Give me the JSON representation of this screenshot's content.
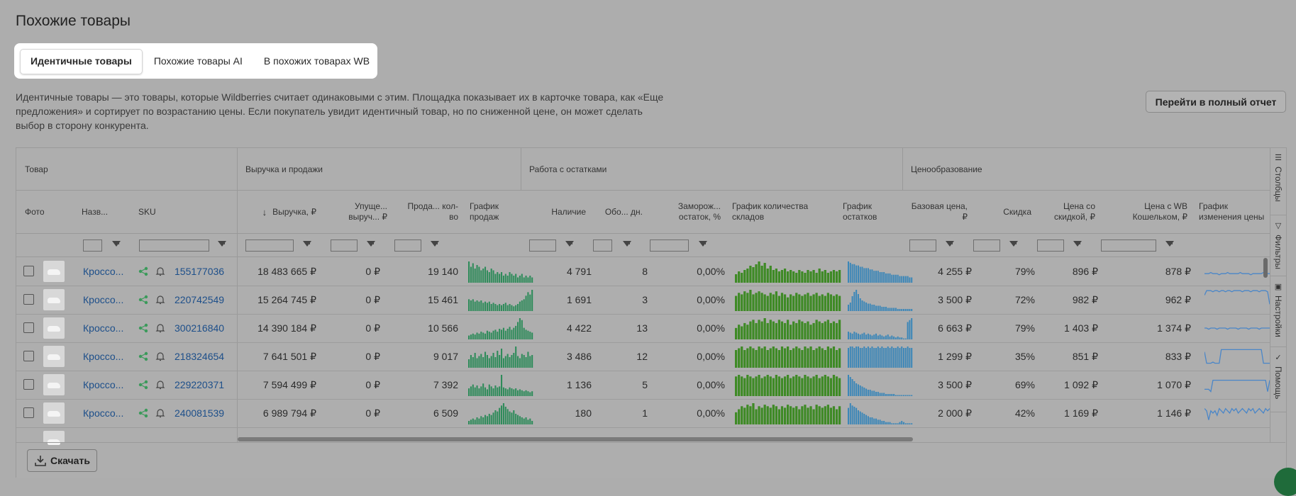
{
  "page": {
    "title": "Похожие товары"
  },
  "tabs": [
    {
      "label": "Идентичные товары",
      "active": true
    },
    {
      "label": "Похожие товары AI",
      "active": false
    },
    {
      "label": "В похожих товарах WB",
      "active": false
    }
  ],
  "description": "Идентичные товары — это товары, которые Wildberries считает одинаковыми с этим. Площадка показывает их в карточке товара, как «Еще предложения» и сортирует по возрастанию цены. Если покупатель увидит идентичный товар, но по сниженной цене, он может сделать выбор в сторону конкурента.",
  "full_report_button": "Перейти в полный отчет",
  "groups": {
    "product": "Товар",
    "revenue": "Выручка и продажи",
    "stock": "Работа с остатками",
    "pricing": "Ценообразование"
  },
  "columns": {
    "photo": "Фото",
    "name": "Назв...",
    "sku": "SKU",
    "revenue": "Выручка, ₽",
    "lost_revenue": "Упуще... выруч... ₽",
    "sales_qty": "Прода... кол-во",
    "sales_chart": "График продаж",
    "stock": "Наличие",
    "turnover": "Обо... дн.",
    "frozen": "Заморож... остаток, %",
    "warehouses_chart": "График количества складов",
    "stock_chart": "График остатков",
    "base_price": "Базовая цена, ₽",
    "discount": "Скидка",
    "discount_price": "Цена со скидкой, ₽",
    "wallet_price": "Цена с WB Кошельком, ₽",
    "price_chart": "График изменения цены"
  },
  "sort_icon": "arrow-down-icon",
  "rows": [
    {
      "name": "Кроссо...",
      "sku": "155177036",
      "revenue": "18 483 665 ₽",
      "lost": "0 ₽",
      "qty": "19 140",
      "stock": "4 791",
      "turnover": "8",
      "frozen": "0,00%",
      "base": "4 255 ₽",
      "discount": "79%",
      "dprice": "896 ₽",
      "wprice": "878 ₽",
      "sales": [
        12,
        9,
        11,
        8,
        10,
        9,
        7,
        8,
        9,
        7,
        6,
        8,
        7,
        5,
        6,
        5,
        6,
        4,
        5,
        4,
        6,
        5,
        4,
        5,
        3,
        4,
        5,
        3,
        4,
        3,
        4,
        3
      ],
      "wh": [
        6,
        8,
        7,
        9,
        10,
        12,
        11,
        13,
        15,
        12,
        14,
        10,
        12,
        9,
        10,
        8,
        9,
        10,
        8,
        9,
        8,
        7,
        9,
        8,
        7,
        9,
        8,
        9,
        7,
        10,
        8,
        9,
        7,
        8,
        9,
        8,
        9
      ],
      "stk": [
        16,
        15,
        14,
        14,
        13,
        13,
        12,
        12,
        11,
        11,
        11,
        10,
        10,
        9,
        9,
        9,
        8,
        8,
        8,
        7,
        7,
        7,
        6,
        6,
        6,
        6,
        5,
        5,
        5,
        5,
        5,
        4,
        4
      ],
      "price": [
        8,
        8,
        8,
        9,
        8,
        8,
        8,
        7,
        8,
        8,
        8,
        9,
        8,
        8,
        8,
        8,
        8,
        9,
        8,
        8,
        8,
        8,
        7,
        8,
        8,
        8,
        8,
        8,
        9,
        8,
        8,
        8
      ]
    },
    {
      "name": "Кроссо...",
      "sku": "220742549",
      "revenue": "15 264 745 ₽",
      "lost": "0 ₽",
      "qty": "15 461",
      "stock": "1 691",
      "turnover": "3",
      "frozen": "0,00%",
      "base": "3 500 ₽",
      "discount": "72%",
      "dprice": "982 ₽",
      "wprice": "962 ₽",
      "sales": [
        10,
        9,
        10,
        8,
        9,
        8,
        9,
        7,
        8,
        7,
        8,
        6,
        7,
        6,
        5,
        6,
        5,
        6,
        7,
        5,
        6,
        5,
        4,
        5,
        6,
        8,
        9,
        10,
        13,
        16,
        14,
        18
      ],
      "wh": [
        10,
        12,
        11,
        13,
        12,
        14,
        11,
        12,
        13,
        12,
        11,
        10,
        12,
        11,
        13,
        10,
        12,
        11,
        9,
        11,
        10,
        12,
        11,
        10,
        11,
        12,
        10,
        11,
        12,
        10,
        11,
        10,
        12,
        11,
        10,
        11,
        10
      ],
      "stk": [
        6,
        8,
        14,
        18,
        20,
        16,
        12,
        10,
        9,
        8,
        7,
        7,
        6,
        6,
        5,
        5,
        5,
        4,
        4,
        4,
        3,
        3,
        3,
        3,
        3,
        2,
        2,
        2,
        2,
        2,
        2,
        2,
        2
      ],
      "price": [
        14,
        18,
        18,
        18,
        17,
        18,
        18,
        17,
        18,
        18,
        17,
        18,
        18,
        17,
        18,
        18,
        18,
        18,
        17,
        18,
        18,
        18,
        17,
        18,
        18,
        18,
        17,
        18,
        18,
        18,
        17,
        6
      ]
    },
    {
      "name": "Кроссо...",
      "sku": "300216840",
      "revenue": "14 390 184 ₽",
      "lost": "0 ₽",
      "qty": "10 566",
      "stock": "4 422",
      "turnover": "13",
      "frozen": "0,00%",
      "base": "6 663 ₽",
      "discount": "79%",
      "dprice": "1 403 ₽",
      "wprice": "1 374 ₽",
      "sales": [
        4,
        5,
        6,
        5,
        7,
        6,
        8,
        7,
        6,
        9,
        8,
        7,
        9,
        10,
        8,
        11,
        10,
        12,
        9,
        11,
        13,
        10,
        12,
        14,
        18,
        22,
        20,
        12,
        10,
        9,
        8,
        7
      ],
      "wh": [
        7,
        9,
        8,
        10,
        9,
        11,
        12,
        10,
        12,
        11,
        13,
        10,
        12,
        11,
        10,
        12,
        11,
        10,
        12,
        9,
        11,
        10,
        12,
        11,
        10,
        11,
        9,
        10,
        12,
        11,
        10,
        11,
        12,
        10,
        11,
        10,
        12
      ],
      "stk": [
        8,
        7,
        6,
        8,
        7,
        6,
        5,
        6,
        7,
        5,
        6,
        5,
        4,
        5,
        6,
        4,
        5,
        4,
        3,
        4,
        5,
        3,
        4,
        3,
        2,
        3,
        2,
        2,
        1,
        1,
        18,
        20,
        22
      ],
      "price": [
        10,
        10,
        9,
        10,
        10,
        10,
        9,
        10,
        10,
        10,
        10,
        9,
        10,
        10,
        10,
        10,
        9,
        10,
        10,
        10,
        10,
        9,
        10,
        10,
        10,
        10,
        9,
        10,
        10,
        10,
        10,
        10
      ]
    },
    {
      "name": "Кроссо...",
      "sku": "218324654",
      "revenue": "7 641 501 ₽",
      "lost": "0 ₽",
      "qty": "9 017",
      "stock": "3 486",
      "turnover": "12",
      "frozen": "0,00%",
      "base": "1 299 ₽",
      "discount": "35%",
      "dprice": "851 ₽",
      "wprice": "833 ₽",
      "sales": [
        8,
        12,
        10,
        14,
        9,
        11,
        13,
        10,
        15,
        12,
        9,
        11,
        14,
        10,
        16,
        12,
        18,
        9,
        11,
        13,
        10,
        12,
        14,
        20,
        11,
        9,
        13,
        12,
        10,
        15,
        11,
        12
      ],
      "wh": [
        10,
        11,
        12,
        10,
        11,
        12,
        11,
        10,
        12,
        11,
        12,
        10,
        11,
        12,
        11,
        10,
        12,
        11,
        12,
        10,
        11,
        12,
        11,
        10,
        12,
        11,
        12,
        10,
        11,
        12,
        11,
        10,
        12,
        11,
        12,
        10,
        11
      ],
      "stk": [
        14,
        15,
        15,
        14,
        15,
        15,
        14,
        14,
        15,
        14,
        15,
        14,
        15,
        14,
        14,
        15,
        14,
        15,
        14,
        14,
        15,
        14,
        15,
        14,
        14,
        15,
        14,
        15,
        14,
        14,
        15,
        14,
        14
      ],
      "price": [
        14,
        4,
        4,
        4,
        5,
        4,
        4,
        4,
        16,
        16,
        16,
        16,
        16,
        16,
        16,
        16,
        16,
        16,
        16,
        16,
        16,
        16,
        16,
        16,
        16,
        16,
        16,
        16,
        4,
        4,
        4,
        4
      ]
    },
    {
      "name": "Кроссо...",
      "sku": "229220371",
      "revenue": "7 594 499 ₽",
      "lost": "0 ₽",
      "qty": "7 392",
      "stock": "1 136",
      "turnover": "5",
      "frozen": "0,00%",
      "base": "3 500 ₽",
      "discount": "69%",
      "dprice": "1 092 ₽",
      "wprice": "1 070 ₽",
      "sales": [
        8,
        10,
        12,
        9,
        11,
        8,
        10,
        13,
        9,
        7,
        12,
        10,
        8,
        11,
        9,
        10,
        22,
        9,
        8,
        7,
        9,
        8,
        7,
        8,
        6,
        7,
        6,
        5,
        6,
        5,
        4,
        5
      ],
      "wh": [
        12,
        13,
        12,
        11,
        13,
        12,
        11,
        12,
        13,
        11,
        12,
        13,
        12,
        11,
        13,
        12,
        11,
        12,
        13,
        11,
        12,
        13,
        12,
        11,
        13,
        12,
        11,
        12,
        13,
        11,
        12,
        13,
        12,
        11,
        13,
        12,
        11
      ],
      "stk": [
        20,
        18,
        16,
        14,
        12,
        11,
        10,
        9,
        8,
        7,
        6,
        6,
        5,
        5,
        4,
        4,
        3,
        3,
        3,
        2,
        2,
        2,
        2,
        2,
        1,
        1,
        1,
        1,
        1,
        1,
        1,
        1,
        1
      ],
      "price": [
        6,
        6,
        6,
        4,
        14,
        14,
        14,
        14,
        14,
        14,
        14,
        14,
        14,
        14,
        14,
        14,
        14,
        14,
        14,
        14,
        14,
        14,
        14,
        14,
        14,
        14,
        14,
        14,
        14,
        14,
        4,
        14
      ]
    },
    {
      "name": "Кроссо...",
      "sku": "240081539",
      "revenue": "6 989 794 ₽",
      "lost": "0 ₽",
      "qty": "6 509",
      "stock": "180",
      "turnover": "1",
      "frozen": "0,00%",
      "base": "2 000 ₽",
      "discount": "42%",
      "dprice": "1 169 ₽",
      "wprice": "1 146 ₽",
      "sales": [
        3,
        4,
        5,
        4,
        6,
        5,
        7,
        6,
        8,
        7,
        9,
        8,
        10,
        12,
        11,
        14,
        16,
        18,
        15,
        13,
        11,
        10,
        12,
        9,
        8,
        7,
        6,
        5,
        6,
        4,
        5,
        3
      ],
      "wh": [
        8,
        10,
        12,
        11,
        13,
        12,
        14,
        10,
        12,
        11,
        13,
        12,
        11,
        13,
        12,
        10,
        12,
        11,
        13,
        12,
        11,
        12,
        10,
        12,
        13,
        11,
        12,
        10,
        13,
        12,
        11,
        12,
        13,
        11,
        12,
        10,
        12
      ],
      "stk": [
        14,
        18,
        16,
        15,
        14,
        12,
        11,
        10,
        9,
        8,
        7,
        6,
        6,
        5,
        5,
        4,
        4,
        3,
        3,
        2,
        2,
        2,
        1,
        1,
        1,
        1,
        2,
        3,
        2,
        1,
        1,
        1,
        1
      ],
      "price": [
        14,
        12,
        4,
        12,
        10,
        12,
        8,
        14,
        12,
        10,
        14,
        12,
        10,
        14,
        12,
        14,
        10,
        12,
        14,
        12,
        10,
        14,
        12,
        14,
        10,
        12,
        14,
        12,
        10,
        14,
        12,
        14
      ]
    }
  ],
  "download_button": "Скачать",
  "side_panel": [
    {
      "label": "Столбцы",
      "icon": "columns-icon"
    },
    {
      "label": "Фильтры",
      "icon": "filter-icon"
    },
    {
      "label": "Настройки",
      "icon": "settings-icon"
    },
    {
      "label": "Помощь",
      "icon": "check-icon"
    }
  ],
  "colors": {
    "sales": "#2e8b5a",
    "warehouses": "#3e8a25",
    "stock": "#3a86b8",
    "price": "#4a86c8",
    "link": "#1d4f8a"
  }
}
